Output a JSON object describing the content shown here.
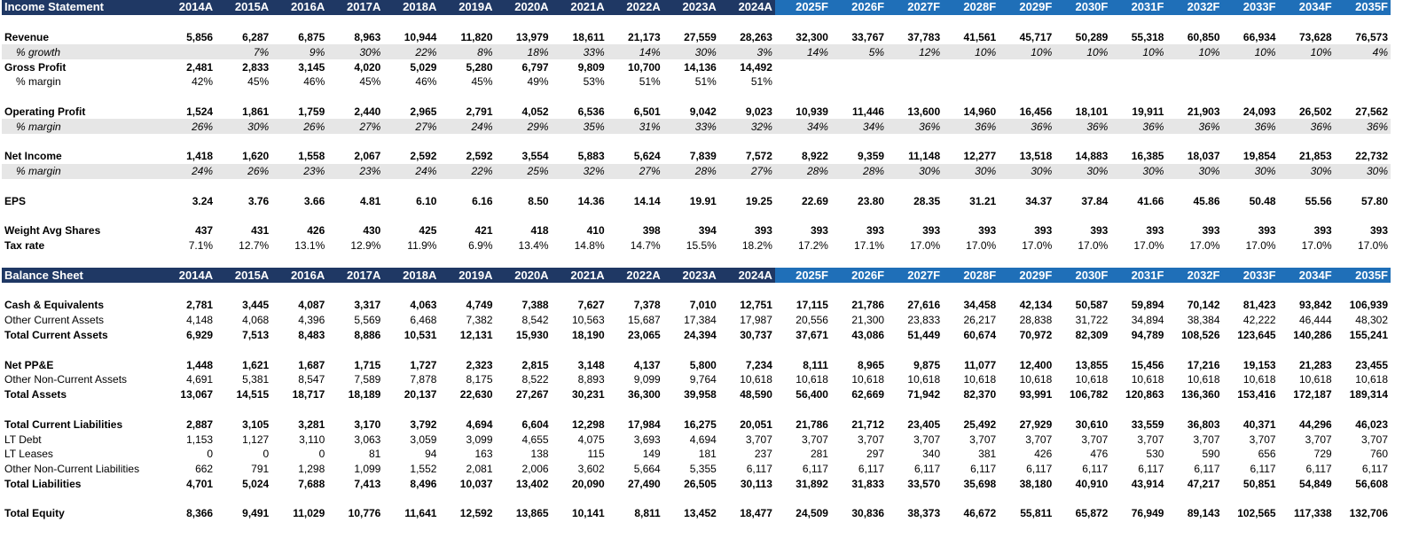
{
  "income": {
    "title": "Income Statement",
    "years": [
      "2014A",
      "2015A",
      "2016A",
      "2017A",
      "2018A",
      "2019A",
      "2020A",
      "2021A",
      "2022A",
      "2023A",
      "2024A",
      "2025F",
      "2026F",
      "2027F",
      "2028F",
      "2029F",
      "2030F",
      "2031F",
      "2032F",
      "2033F",
      "2034F",
      "2035F"
    ],
    "rows": [
      {
        "label": "Revenue",
        "values": [
          "5,856",
          "6,287",
          "6,875",
          "8,963",
          "10,944",
          "11,820",
          "13,979",
          "18,611",
          "21,173",
          "27,559",
          "28,263",
          "32,300",
          "33,767",
          "37,783",
          "41,561",
          "45,717",
          "50,289",
          "55,318",
          "60,850",
          "66,934",
          "73,628",
          "76,573"
        ]
      },
      {
        "label": "% growth",
        "values": [
          "",
          "7%",
          "9%",
          "30%",
          "22%",
          "8%",
          "18%",
          "33%",
          "14%",
          "30%",
          "3%",
          "14%",
          "5%",
          "12%",
          "10%",
          "10%",
          "10%",
          "10%",
          "10%",
          "10%",
          "10%",
          "4%"
        ]
      },
      {
        "label": "Gross Profit",
        "values": [
          "2,481",
          "2,833",
          "3,145",
          "4,020",
          "5,029",
          "5,280",
          "6,797",
          "9,809",
          "10,700",
          "14,136",
          "14,492",
          "",
          "",
          "",
          "",
          "",
          "",
          "",
          "",
          "",
          "",
          ""
        ]
      },
      {
        "label": "% margin",
        "values": [
          "42%",
          "45%",
          "46%",
          "45%",
          "46%",
          "45%",
          "49%",
          "53%",
          "51%",
          "51%",
          "51%",
          "",
          "",
          "",
          "",
          "",
          "",
          "",
          "",
          "",
          "",
          ""
        ]
      },
      {
        "label": "Operating Profit",
        "values": [
          "1,524",
          "1,861",
          "1,759",
          "2,440",
          "2,965",
          "2,791",
          "4,052",
          "6,536",
          "6,501",
          "9,042",
          "9,023",
          "10,939",
          "11,446",
          "13,600",
          "14,960",
          "16,456",
          "18,101",
          "19,911",
          "21,903",
          "24,093",
          "26,502",
          "27,562"
        ]
      },
      {
        "label": "% margin",
        "values": [
          "26%",
          "30%",
          "26%",
          "27%",
          "27%",
          "24%",
          "29%",
          "35%",
          "31%",
          "33%",
          "32%",
          "34%",
          "34%",
          "36%",
          "36%",
          "36%",
          "36%",
          "36%",
          "36%",
          "36%",
          "36%",
          "36%"
        ]
      },
      {
        "label": "Net Income",
        "values": [
          "1,418",
          "1,620",
          "1,558",
          "2,067",
          "2,592",
          "2,592",
          "3,554",
          "5,883",
          "5,624",
          "7,839",
          "7,572",
          "8,922",
          "9,359",
          "11,148",
          "12,277",
          "13,518",
          "14,883",
          "16,385",
          "18,037",
          "19,854",
          "21,853",
          "22,732"
        ]
      },
      {
        "label": "% margin",
        "values": [
          "24%",
          "26%",
          "23%",
          "23%",
          "24%",
          "22%",
          "25%",
          "32%",
          "27%",
          "28%",
          "27%",
          "28%",
          "28%",
          "30%",
          "30%",
          "30%",
          "30%",
          "30%",
          "30%",
          "30%",
          "30%",
          "30%"
        ]
      },
      {
        "label": "EPS",
        "values": [
          "3.24",
          "3.76",
          "3.66",
          "4.81",
          "6.10",
          "6.16",
          "8.50",
          "14.36",
          "14.14",
          "19.91",
          "19.25",
          "22.69",
          "23.80",
          "28.35",
          "31.21",
          "34.37",
          "37.84",
          "41.66",
          "45.86",
          "50.48",
          "55.56",
          "57.80"
        ]
      },
      {
        "label": "Weight Avg Shares",
        "values": [
          "437",
          "431",
          "426",
          "430",
          "425",
          "421",
          "418",
          "410",
          "398",
          "394",
          "393",
          "393",
          "393",
          "393",
          "393",
          "393",
          "393",
          "393",
          "393",
          "393",
          "393",
          "393"
        ]
      },
      {
        "label": "Tax rate",
        "values": [
          "7.1%",
          "12.7%",
          "13.1%",
          "12.9%",
          "11.9%",
          "6.9%",
          "13.4%",
          "14.8%",
          "14.7%",
          "15.5%",
          "18.2%",
          "17.2%",
          "17.1%",
          "17.0%",
          "17.0%",
          "17.0%",
          "17.0%",
          "17.0%",
          "17.0%",
          "17.0%",
          "17.0%",
          "17.0%"
        ]
      }
    ]
  },
  "balance": {
    "title": "Balance Sheet",
    "years": [
      "2014A",
      "2015A",
      "2016A",
      "2017A",
      "2018A",
      "2019A",
      "2020A",
      "2021A",
      "2022A",
      "2023A",
      "2024A",
      "2025F",
      "2026F",
      "2027F",
      "2028F",
      "2029F",
      "2030F",
      "2031F",
      "2032F",
      "2033F",
      "2034F",
      "2035F"
    ],
    "rows": [
      {
        "label": "Cash & Equivalents",
        "values": [
          "2,781",
          "3,445",
          "4,087",
          "3,317",
          "4,063",
          "4,749",
          "7,388",
          "7,627",
          "7,378",
          "7,010",
          "12,751",
          "17,115",
          "21,786",
          "27,616",
          "34,458",
          "42,134",
          "50,587",
          "59,894",
          "70,142",
          "81,423",
          "93,842",
          "106,939"
        ]
      },
      {
        "label": "Other Current Assets",
        "values": [
          "4,148",
          "4,068",
          "4,396",
          "5,569",
          "6,468",
          "7,382",
          "8,542",
          "10,563",
          "15,687",
          "17,384",
          "17,987",
          "20,556",
          "21,300",
          "23,833",
          "26,217",
          "28,838",
          "31,722",
          "34,894",
          "38,384",
          "42,222",
          "46,444",
          "48,302"
        ]
      },
      {
        "label": "Total Current Assets",
        "values": [
          "6,929",
          "7,513",
          "8,483",
          "8,886",
          "10,531",
          "12,131",
          "15,930",
          "18,190",
          "23,065",
          "24,394",
          "30,737",
          "37,671",
          "43,086",
          "51,449",
          "60,674",
          "70,972",
          "82,309",
          "94,789",
          "108,526",
          "123,645",
          "140,286",
          "155,241"
        ]
      },
      {
        "label": "Net PP&E",
        "values": [
          "1,448",
          "1,621",
          "1,687",
          "1,715",
          "1,727",
          "2,323",
          "2,815",
          "3,148",
          "4,137",
          "5,800",
          "7,234",
          "8,111",
          "8,965",
          "9,875",
          "11,077",
          "12,400",
          "13,855",
          "15,456",
          "17,216",
          "19,153",
          "21,283",
          "23,455"
        ]
      },
      {
        "label": "Other Non-Current Assets",
        "values": [
          "4,691",
          "5,381",
          "8,547",
          "7,589",
          "7,878",
          "8,175",
          "8,522",
          "8,893",
          "9,099",
          "9,764",
          "10,618",
          "10,618",
          "10,618",
          "10,618",
          "10,618",
          "10,618",
          "10,618",
          "10,618",
          "10,618",
          "10,618",
          "10,618",
          "10,618"
        ]
      },
      {
        "label": "Total Assets",
        "values": [
          "13,067",
          "14,515",
          "18,717",
          "18,189",
          "20,137",
          "22,630",
          "27,267",
          "30,231",
          "36,300",
          "39,958",
          "48,590",
          "56,400",
          "62,669",
          "71,942",
          "82,370",
          "93,991",
          "106,782",
          "120,863",
          "136,360",
          "153,416",
          "172,187",
          "189,314"
        ]
      },
      {
        "label": "Total Current Liabilities",
        "values": [
          "2,887",
          "3,105",
          "3,281",
          "3,170",
          "3,792",
          "4,694",
          "6,604",
          "12,298",
          "17,984",
          "16,275",
          "20,051",
          "21,786",
          "21,712",
          "23,405",
          "25,492",
          "27,929",
          "30,610",
          "33,559",
          "36,803",
          "40,371",
          "44,296",
          "46,023"
        ]
      },
      {
        "label": "LT Debt",
        "values": [
          "1,153",
          "1,127",
          "3,110",
          "3,063",
          "3,059",
          "3,099",
          "4,655",
          "4,075",
          "3,693",
          "4,694",
          "3,707",
          "3,707",
          "3,707",
          "3,707",
          "3,707",
          "3,707",
          "3,707",
          "3,707",
          "3,707",
          "3,707",
          "3,707",
          "3,707"
        ]
      },
      {
        "label": "LT Leases",
        "values": [
          "0",
          "0",
          "0",
          "81",
          "94",
          "163",
          "138",
          "115",
          "149",
          "181",
          "237",
          "281",
          "297",
          "340",
          "381",
          "426",
          "476",
          "530",
          "590",
          "656",
          "729",
          "760"
        ]
      },
      {
        "label": "Other Non-Current Liabilities",
        "values": [
          "662",
          "791",
          "1,298",
          "1,099",
          "1,552",
          "2,081",
          "2,006",
          "3,602",
          "5,664",
          "5,355",
          "6,117",
          "6,117",
          "6,117",
          "6,117",
          "6,117",
          "6,117",
          "6,117",
          "6,117",
          "6,117",
          "6,117",
          "6,117",
          "6,117"
        ]
      },
      {
        "label": "Total Liabilities",
        "values": [
          "4,701",
          "5,024",
          "7,688",
          "7,413",
          "8,496",
          "10,037",
          "13,402",
          "20,090",
          "27,490",
          "26,505",
          "30,113",
          "31,892",
          "31,833",
          "33,570",
          "35,698",
          "38,180",
          "40,910",
          "43,914",
          "47,217",
          "50,851",
          "54,849",
          "56,608"
        ]
      },
      {
        "label": "Total Equity",
        "values": [
          "8,366",
          "9,491",
          "11,029",
          "10,776",
          "11,641",
          "12,592",
          "13,865",
          "10,141",
          "8,811",
          "13,452",
          "18,477",
          "24,509",
          "30,836",
          "38,373",
          "46,672",
          "55,811",
          "65,872",
          "76,949",
          "89,143",
          "102,565",
          "117,338",
          "132,706"
        ]
      }
    ]
  }
}
